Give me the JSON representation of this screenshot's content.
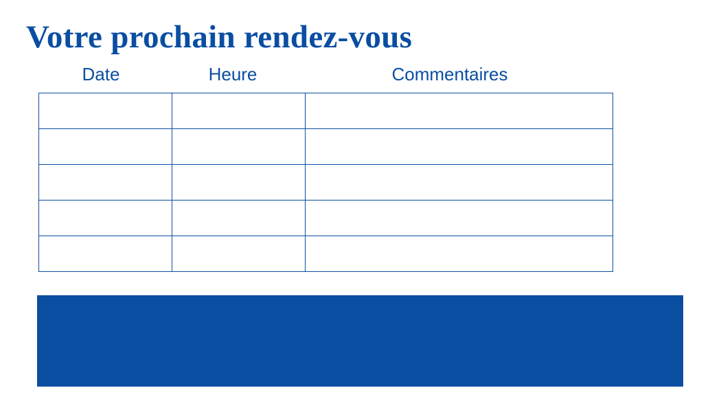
{
  "title": "Votre prochain rendez-vous",
  "table": {
    "headers": [
      "Date",
      "Heure",
      "Commentaires"
    ],
    "rows": [
      [
        "",
        "",
        ""
      ],
      [
        "",
        "",
        ""
      ],
      [
        "",
        "",
        ""
      ],
      [
        "",
        "",
        ""
      ],
      [
        "",
        "",
        ""
      ]
    ]
  },
  "colors": {
    "accent": "#0a4ea2",
    "background": "#ffffff"
  }
}
